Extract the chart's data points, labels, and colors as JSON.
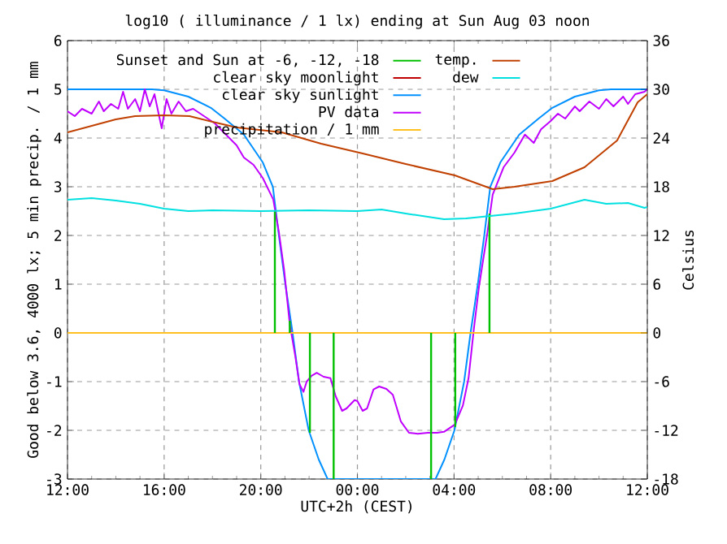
{
  "chart_data": {
    "type": "line",
    "title": "log10 ( illuminance / 1 lx) ending at Sun Aug 03 noon",
    "xlabel": "UTC+2h (CEST)",
    "ylabel": "Good below 3.6, 4000 lx; 5 min precip. / 1 mm",
    "y2label": "Celsius",
    "xlim": [
      "--08-02T12:00",
      "--08-03T12:00"
    ],
    "xticks": [
      {
        "value": "--08-02T12:00",
        "label": "12:00"
      },
      {
        "value": "--08-02T16:00",
        "label": "16:00"
      },
      {
        "value": "--08-02T20:00",
        "label": "20:00"
      },
      {
        "value": "--08-03T00:00",
        "label": "00:00"
      },
      {
        "value": "--08-03T04:00",
        "label": "04:00"
      },
      {
        "value": "--08-03T08:00",
        "label": "08:00"
      },
      {
        "value": "--08-03T12:00",
        "label": "12:00"
      }
    ],
    "ylim": [
      -3,
      6
    ],
    "yticks": [
      -3,
      -2,
      -1,
      0,
      1,
      2,
      3,
      4,
      5,
      6
    ],
    "y2lim": [
      -18,
      36
    ],
    "y2ticks": [
      -18,
      -12,
      -6,
      0,
      6,
      12,
      18,
      24,
      30,
      36
    ],
    "grid": true,
    "legend": "top",
    "series": [
      {
        "name": "Sunset and Sun at -6, -12, -18",
        "type": "bar",
        "color": "#00c000",
        "x": [
          "--08-02T20:35",
          "--08-02T21:12",
          "--08-02T22:02",
          "--08-02T23:01",
          "--08-03T03:03",
          "--08-03T04:03",
          "--08-03T05:28"
        ],
        "values": [
          2.5,
          0.25,
          -2.05,
          -3,
          -3,
          -1.93,
          2.45
        ]
      },
      {
        "name": "clear sky moonlight",
        "color": "#c00000"
      },
      {
        "name": "clear sky sunlight",
        "color": "#0090ff",
        "x": [
          "--08-02T12:00",
          "--08-02T14:00",
          "--08-02T15:30",
          "--08-02T16:00",
          "--08-02T17:00",
          "--08-02T17:56",
          "--08-02T18:30",
          "--08-02T19:18",
          "--08-02T20:05",
          "--08-02T20:30",
          "--08-02T20:45",
          "--08-02T21:01",
          "--08-02T21:19",
          "--08-02T21:35",
          "--08-02T21:59",
          "--08-02T22:24",
          "--08-02T22:46",
          "--08-03T03:14",
          "--08-03T03:36",
          "--08-03T04:01",
          "--08-03T04:25",
          "--08-03T04:41",
          "--08-03T04:59",
          "--08-03T05:15",
          "--08-03T05:30",
          "--08-03T05:55",
          "--08-03T06:42",
          "--08-03T07:30",
          "--08-03T08:04",
          "--08-03T09:00",
          "--08-03T10:00",
          "--08-03T10:30",
          "--08-03T12:00"
        ],
        "values": [
          5,
          5,
          5,
          4.98,
          4.85,
          4.62,
          4.4,
          4.07,
          3.5,
          3,
          2,
          1,
          0,
          -1,
          -2,
          -2.6,
          -3,
          -3,
          -2.6,
          -2,
          -1,
          0,
          1,
          2,
          3,
          3.5,
          4.07,
          4.4,
          4.62,
          4.85,
          4.98,
          5,
          5
        ]
      },
      {
        "name": "PV data",
        "color": "#c000ff",
        "x": [
          "--08-02T12:00",
          "--08-02T12:18",
          "--08-02T12:36",
          "--08-02T13:00",
          "--08-02T13:18",
          "--08-02T13:30",
          "--08-02T13:48",
          "--08-02T14:06",
          "--08-02T14:18",
          "--08-02T14:30",
          "--08-02T14:48",
          "--08-02T15:00",
          "--08-02T15:12",
          "--08-02T15:24",
          "--08-02T15:36",
          "--08-02T15:54",
          "--08-02T16:06",
          "--08-02T16:18",
          "--08-02T16:36",
          "--08-02T16:54",
          "--08-02T17:12",
          "--08-02T17:30",
          "--08-02T17:48",
          "--08-02T18:06",
          "--08-02T18:24",
          "--08-02T18:42",
          "--08-02T19:00",
          "--08-02T19:18",
          "--08-02T19:42",
          "--08-02T20:05",
          "--08-02T20:31",
          "--08-02T20:45",
          "--08-02T20:58",
          "--08-02T21:12",
          "--08-02T21:26",
          "--08-02T21:36",
          "--08-02T21:46",
          "--08-02T21:54",
          "--08-02T22:06",
          "--08-02T22:19",
          "--08-02T22:36",
          "--08-02T22:53",
          "--08-02T23:06",
          "--08-02T23:22",
          "--08-02T23:33",
          "--08-02T23:53",
          "--08-03T00:00",
          "--08-03T00:13",
          "--08-03T00:24",
          "--08-03T00:40",
          "--08-03T00:54",
          "--08-03T01:12",
          "--08-03T01:28",
          "--08-03T01:48",
          "--08-03T02:08",
          "--08-03T02:30",
          "--08-03T02:55",
          "--08-03T03:18",
          "--08-03T03:35",
          "--08-03T04:02",
          "--08-03T04:22",
          "--08-03T04:36",
          "--08-03T04:49",
          "--08-03T05:02",
          "--08-03T05:23",
          "--08-03T05:36",
          "--08-03T06:03",
          "--08-03T06:30",
          "--08-03T06:56",
          "--08-03T07:18",
          "--08-03T07:36",
          "--08-03T08:00",
          "--08-03T08:18",
          "--08-03T08:36",
          "--08-03T09:00",
          "--08-03T09:12",
          "--08-03T09:36",
          "--08-03T10:00",
          "--08-03T10:18",
          "--08-03T10:36",
          "--08-03T11:00",
          "--08-03T11:12",
          "--08-03T11:30",
          "--08-03T11:53",
          "--08-03T12:00"
        ],
        "values": [
          4.55,
          4.45,
          4.6,
          4.5,
          4.75,
          4.55,
          4.7,
          4.6,
          4.95,
          4.6,
          4.8,
          4.55,
          5,
          4.65,
          4.9,
          4.2,
          4.8,
          4.5,
          4.75,
          4.55,
          4.6,
          4.5,
          4.4,
          4.3,
          4.15,
          4,
          3.85,
          3.6,
          3.45,
          3.18,
          2.74,
          2.07,
          1.29,
          0.18,
          -0.49,
          -1.05,
          -1.21,
          -1,
          -0.88,
          -0.82,
          -0.9,
          -0.93,
          -1.3,
          -1.6,
          -1.55,
          -1.38,
          -1.4,
          -1.6,
          -1.55,
          -1.16,
          -1.1,
          -1.15,
          -1.27,
          -1.82,
          -2.05,
          -2.07,
          -2.05,
          -2.05,
          -2.03,
          -1.88,
          -1.49,
          -0.93,
          0.07,
          0.95,
          2.07,
          2.84,
          3.4,
          3.7,
          4.07,
          3.9,
          4.18,
          4.35,
          4.5,
          4.4,
          4.65,
          4.55,
          4.75,
          4.6,
          4.8,
          4.65,
          4.85,
          4.7,
          4.9,
          4.95,
          5
        ]
      },
      {
        "name": "precipitation / 1 mm",
        "color": "#ffc020",
        "x": [
          "--08-02T12:00",
          "--08-03T12:00"
        ],
        "values": [
          0,
          0
        ]
      },
      {
        "name": "temp.",
        "color": "#c04000",
        "axis": "y2",
        "x": [
          "--08-02T12:00",
          "--08-02T13:00",
          "--08-02T14:00",
          "--08-02T14:48",
          "--08-02T16:00",
          "--08-02T17:03",
          "--08-02T18:00",
          "--08-02T19:00",
          "--08-02T20:52",
          "--08-02T22:30",
          "--08-03T00:13",
          "--08-03T02:00",
          "--08-03T04:02",
          "--08-03T05:36",
          "--08-03T06:30",
          "--08-03T08:04",
          "--08-03T09:24",
          "--08-03T10:45",
          "--08-03T11:36",
          "--08-03T12:00"
        ],
        "values": [
          24.7,
          25.5,
          26.3,
          26.7,
          26.8,
          26.7,
          26,
          25.3,
          24.7,
          23.3,
          22.1,
          20.8,
          19.4,
          17.7,
          18,
          18.7,
          20.4,
          23.7,
          28.4,
          29.4
        ]
      },
      {
        "name": "dew",
        "color": "#00e0e0",
        "axis": "y2",
        "x": [
          "--08-02T12:00",
          "--08-02T13:00",
          "--08-02T14:00",
          "--08-02T15:00",
          "--08-02T16:00",
          "--08-02T17:00",
          "--08-02T18:00",
          "--08-02T20:00",
          "--08-02T22:00",
          "--08-03T00:00",
          "--08-03T01:00",
          "--08-03T02:00",
          "--08-03T03:35",
          "--08-03T04:30",
          "--08-03T05:30",
          "--08-03T06:30",
          "--08-03T08:00",
          "--08-03T09:24",
          "--08-03T10:18",
          "--08-03T11:12",
          "--08-03T11:53",
          "--08-03T12:00"
        ],
        "values": [
          16.4,
          16.6,
          16.3,
          15.9,
          15.3,
          15,
          15.1,
          15,
          15.1,
          15,
          15.2,
          14.7,
          14,
          14.1,
          14.4,
          14.7,
          15.3,
          16.4,
          15.9,
          16,
          15.4,
          15.5
        ]
      }
    ]
  }
}
